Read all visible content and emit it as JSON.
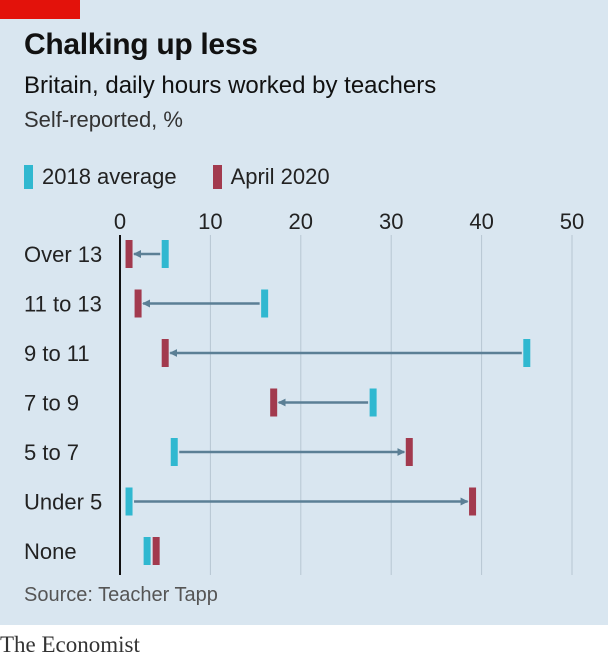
{
  "header": {
    "title": "Chalking up less",
    "subtitle": "Britain, daily hours worked by teachers",
    "unit_note": "Self-reported, %"
  },
  "legend": [
    {
      "label": "2018 average",
      "color": "#30b8d0"
    },
    {
      "label": "April 2020",
      "color": "#a23a4e"
    }
  ],
  "chart_data": {
    "type": "dumbbell",
    "title": "Chalking up less",
    "subtitle": "Britain, daily hours worked by teachers",
    "xlabel": "Self-reported, %",
    "xlim": [
      0,
      50
    ],
    "xticks": [
      0,
      10,
      20,
      30,
      40,
      50
    ],
    "grid": true,
    "legend_position": "top",
    "categories": [
      "Over 13",
      "11 to 13",
      "9 to 11",
      "7 to 9",
      "5 to 7",
      "Under 5",
      "None"
    ],
    "series": [
      {
        "name": "2018 average",
        "color": "#30b8d0",
        "values": [
          5,
          16,
          45,
          28,
          6,
          1,
          3
        ]
      },
      {
        "name": "April 2020",
        "color": "#a23a4e",
        "values": [
          1,
          2,
          5,
          17,
          32,
          39,
          4
        ]
      }
    ],
    "arrow_color": "#5b7f95"
  },
  "footer": {
    "source": "Source: Teacher Tapp",
    "brand": "The Economist"
  }
}
